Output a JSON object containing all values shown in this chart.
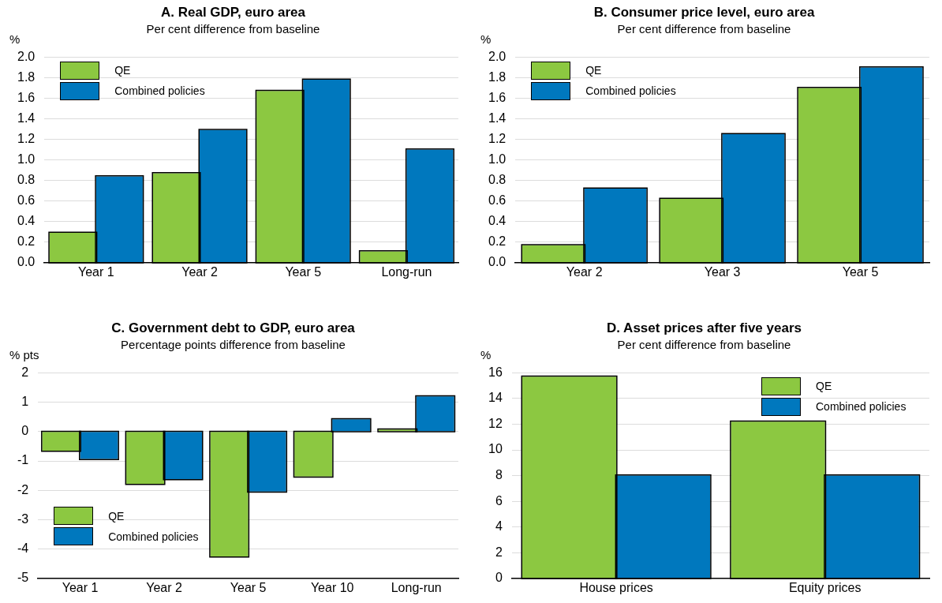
{
  "chart_data": [
    {
      "type": "bar",
      "title": "A. Real GDP, euro area",
      "subtitle": "Per cent difference from baseline",
      "ylabel": "%",
      "categories": [
        "Year 1",
        "Year 2",
        "Year 5",
        "Long-run"
      ],
      "series": [
        {
          "name": "QE",
          "color": "#8cc841",
          "values": [
            0.29,
            0.87,
            1.67,
            0.11
          ]
        },
        {
          "name": "Combined policies",
          "color": "#0078be",
          "values": [
            0.84,
            1.29,
            1.78,
            1.1
          ]
        }
      ],
      "ylim": [
        0,
        2
      ],
      "yticks": [
        {
          "value": 0,
          "label": "0.0"
        },
        {
          "value": 0.2,
          "label": "0.2"
        },
        {
          "value": 0.4,
          "label": "0.4"
        },
        {
          "value": 0.6,
          "label": "0.6"
        },
        {
          "value": 0.8,
          "label": "0.8"
        },
        {
          "value": 1,
          "label": "1.0"
        },
        {
          "value": 1.2,
          "label": "1.2"
        },
        {
          "value": 1.4,
          "label": "1.4"
        },
        {
          "value": 1.6,
          "label": "1.6"
        },
        {
          "value": 1.8,
          "label": "1.8"
        },
        {
          "value": 2,
          "label": "2.0"
        }
      ],
      "grid": "y",
      "legend": "top left"
    },
    {
      "type": "bar",
      "title": "B. Consumer price level, euro area",
      "subtitle": "Per cent difference from baseline",
      "ylabel": "%",
      "categories": [
        "Year 2",
        "Year 3",
        "Year 5"
      ],
      "series": [
        {
          "name": "QE",
          "color": "#8cc841",
          "values": [
            0.17,
            0.62,
            1.7
          ]
        },
        {
          "name": "Combined policies",
          "color": "#0078be",
          "values": [
            0.72,
            1.25,
            1.9
          ]
        }
      ],
      "ylim": [
        0,
        2
      ],
      "yticks": [
        {
          "value": 0,
          "label": "0.0"
        },
        {
          "value": 0.2,
          "label": "0.2"
        },
        {
          "value": 0.4,
          "label": "0.4"
        },
        {
          "value": 0.6,
          "label": "0.6"
        },
        {
          "value": 0.8,
          "label": "0.8"
        },
        {
          "value": 1,
          "label": "1.0"
        },
        {
          "value": 1.2,
          "label": "1.2"
        },
        {
          "value": 1.4,
          "label": "1.4"
        },
        {
          "value": 1.6,
          "label": "1.6"
        },
        {
          "value": 1.8,
          "label": "1.8"
        },
        {
          "value": 2,
          "label": "2.0"
        }
      ],
      "grid": "y",
      "legend": "top left"
    },
    {
      "type": "bar",
      "title": "C. Government debt to GDP, euro area",
      "subtitle": "Percentage points difference from baseline",
      "ylabel": "% pts",
      "categories": [
        "Year 1",
        "Year 2",
        "Year 5",
        "Year 10",
        "Long-run"
      ],
      "series": [
        {
          "name": "QE",
          "color": "#8cc841",
          "values": [
            -0.65,
            -1.78,
            -4.25,
            -1.53,
            0.07
          ]
        },
        {
          "name": "Combined policies",
          "color": "#0078be",
          "values": [
            -0.93,
            -1.62,
            -2.04,
            0.42,
            1.2
          ]
        }
      ],
      "ylim": [
        -5,
        2
      ],
      "yticks": [
        -5,
        -4,
        -3,
        -2,
        -1,
        0,
        1,
        2
      ],
      "grid": "y",
      "legend": "bottom left"
    },
    {
      "type": "bar",
      "title": "D. Asset prices after five years",
      "subtitle": "Per cent difference from baseline",
      "ylabel": "%",
      "categories": [
        "House prices",
        "Equity prices"
      ],
      "series": [
        {
          "name": "QE",
          "color": "#8cc841",
          "values": [
            15.7,
            12.2
          ]
        },
        {
          "name": "Combined policies",
          "color": "#0078be",
          "values": [
            8.0,
            8.0
          ]
        }
      ],
      "ylim": [
        0,
        16
      ],
      "yticks": [
        0,
        2,
        4,
        6,
        8,
        10,
        12,
        14,
        16
      ],
      "grid": "y",
      "legend": "top right"
    }
  ]
}
